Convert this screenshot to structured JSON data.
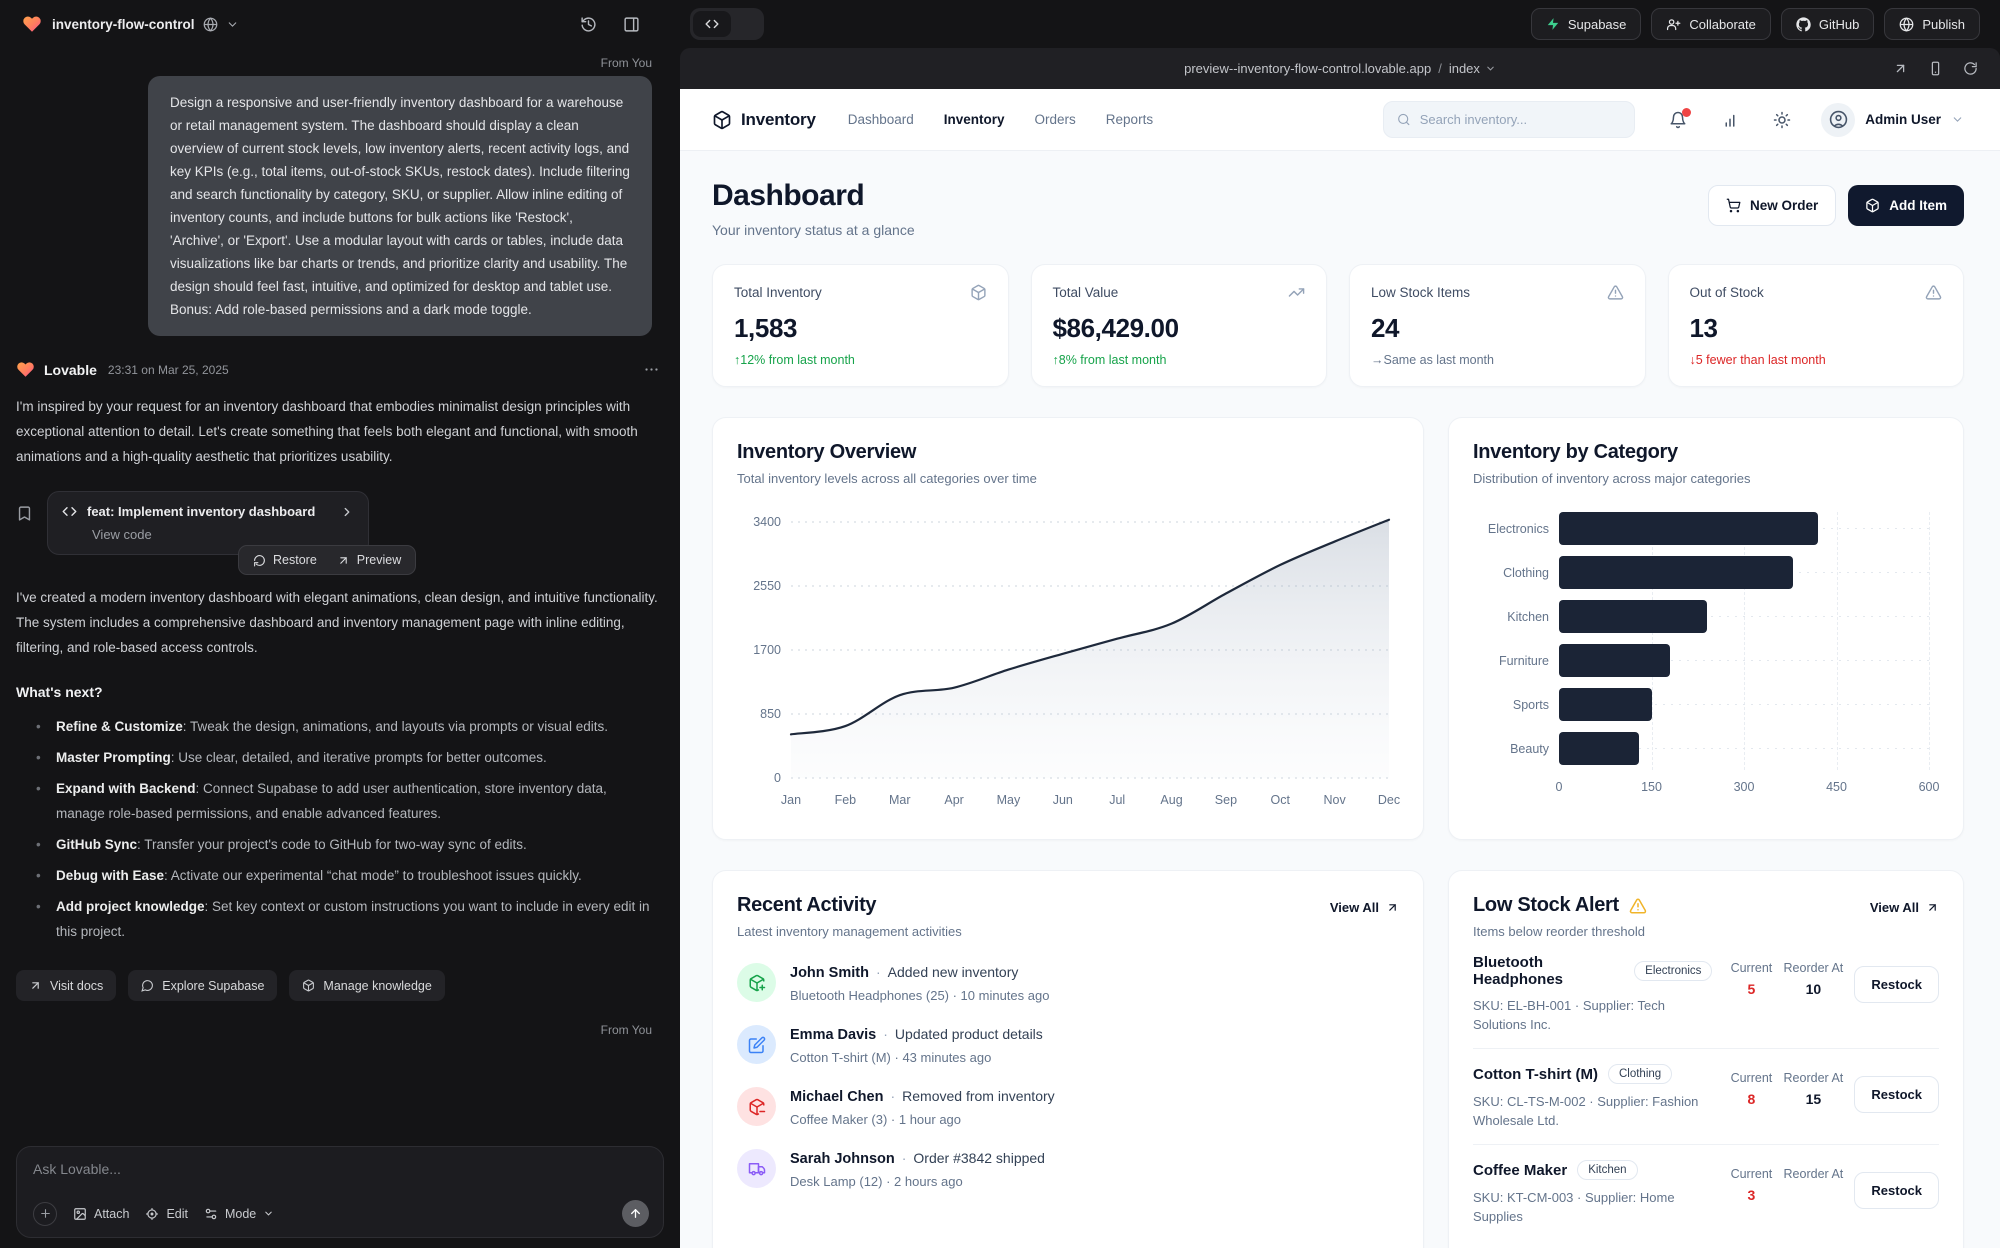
{
  "ui": {
    "dot": "·"
  },
  "chat": {
    "header": {
      "project_name": "inventory-flow-control"
    },
    "from_you_label": "From You",
    "user_message": "Design a responsive and user-friendly inventory dashboard for a warehouse or retail management system. The dashboard should display a clean overview of current stock levels, low inventory alerts, recent activity logs, and key KPIs (e.g., total items, out-of-stock SKUs, restock dates). Include filtering and search functionality by category, SKU, or supplier. Allow inline editing of inventory counts, and include buttons for bulk actions like 'Restock', 'Archive', or 'Export'. Use a modular layout with cards or tables, include data visualizations like bar charts or trends, and prioritize clarity and usability. The design should feel fast, intuitive, and optimized for desktop and tablet use. Bonus: Add role-based permissions and a dark mode toggle.",
    "assistant": {
      "name": "Lovable",
      "timestamp": "23:31 on Mar 25, 2025",
      "intro": "I'm inspired by your request for an inventory dashboard that embodies minimalist design principles with exceptional attention to detail. Let's create something that feels both elegant and functional, with smooth animations and a high-quality aesthetic that prioritizes usability.",
      "commit": {
        "title": "feat: Implement inventory dashboard",
        "view_code_label": "View code",
        "restore_label": "Restore",
        "preview_label": "Preview"
      },
      "summary": "I've created a modern inventory dashboard with elegant animations, clean design, and intuitive functionality. The system includes a comprehensive dashboard and inventory management page with inline editing, filtering, and role-based access controls.",
      "whats_next_heading": "What's next?",
      "bullets": [
        {
          "title": "Refine & Customize",
          "text": ": Tweak the design, animations, and layouts via prompts or visual edits."
        },
        {
          "title": "Master Prompting",
          "text": ": Use clear, detailed, and iterative prompts for better outcomes."
        },
        {
          "title": "Expand with Backend",
          "text": ": Connect Supabase to add user authentication, store inventory data, manage role-based permissions, and enable advanced features."
        },
        {
          "title": "GitHub Sync",
          "text": ": Transfer your project's code to GitHub for two-way sync of edits."
        },
        {
          "title": "Debug with Ease",
          "text": ": Activate our experimental “chat mode” to troubleshoot issues quickly."
        },
        {
          "title": "Add project knowledge",
          "text": ": Set key context or custom instructions you want to include in every edit in this project."
        }
      ]
    },
    "footer_buttons": {
      "visit_docs": "Visit docs",
      "explore_supabase": "Explore Supabase",
      "manage_knowledge": "Manage knowledge"
    },
    "composer": {
      "placeholder": "Ask Lovable...",
      "attach_label": "Attach",
      "edit_label": "Edit",
      "mode_label": "Mode"
    }
  },
  "topbar": {
    "supabase": "Supabase",
    "collaborate": "Collaborate",
    "github": "GitHub",
    "publish": "Publish"
  },
  "browser": {
    "url": "preview--inventory-flow-control.lovable.app",
    "separator": "/",
    "path": "index"
  },
  "app": {
    "nav": {
      "brand": "Inventory",
      "links": [
        "Dashboard",
        "Inventory",
        "Orders",
        "Reports"
      ],
      "active_link": "Inventory",
      "search_placeholder": "Search inventory...",
      "user_name": "Admin User"
    },
    "page": {
      "title": "Dashboard",
      "subtitle": "Your inventory status at a glance",
      "new_order_label": "New Order",
      "add_item_label": "Add Item"
    },
    "kpis": [
      {
        "label": "Total Inventory",
        "value": "1,583",
        "delta": "↑12% from last month",
        "trend": "up",
        "icon": "package-icon"
      },
      {
        "label": "Total Value",
        "value": "$86,429.00",
        "delta": "↑8% from last month",
        "trend": "up",
        "icon": "trending-up-icon"
      },
      {
        "label": "Low Stock Items",
        "value": "24",
        "delta": "→Same as last month",
        "trend": "flat",
        "icon": "alert-triangle-icon"
      },
      {
        "label": "Out of Stock",
        "value": "13",
        "delta": "↓5 fewer than last month",
        "trend": "down",
        "icon": "alert-triangle-icon"
      }
    ],
    "recent_activity": {
      "title": "Recent Activity",
      "subtitle": "Latest inventory management activities",
      "view_all_label": "View All",
      "items": [
        {
          "name": "John Smith",
          "action": "Added new inventory",
          "detail": "Bluetooth Headphones (25) · 10 minutes ago",
          "icon": "package-plus-icon",
          "color": "green"
        },
        {
          "name": "Emma Davis",
          "action": "Updated product details",
          "detail": "Cotton T-shirt (M) · 43 minutes ago",
          "icon": "edit-icon",
          "color": "blue"
        },
        {
          "name": "Michael Chen",
          "action": "Removed from inventory",
          "detail": "Coffee Maker (3) · 1 hour ago",
          "icon": "package-minus-icon",
          "color": "red"
        },
        {
          "name": "Sarah Johnson",
          "action": "Order #3842 shipped",
          "detail": "Desk Lamp (12) · 2 hours ago",
          "icon": "truck-icon",
          "color": "purple"
        }
      ]
    },
    "low_stock": {
      "title": "Low Stock Alert",
      "subtitle": "Items below reorder threshold",
      "view_all_label": "View All",
      "current_label": "Current",
      "reorder_label": "Reorder At",
      "restock_label": "Restock",
      "items": [
        {
          "name": "Bluetooth Headphones",
          "category": "Electronics",
          "sku_line": "SKU: EL-BH-001 · Supplier: Tech Solutions Inc.",
          "current": "5",
          "reorder_at": "10"
        },
        {
          "name": "Cotton T-shirt (M)",
          "category": "Clothing",
          "sku_line": "SKU: CL-TS-M-002 · Supplier: Fashion Wholesale Ltd.",
          "current": "8",
          "reorder_at": "15"
        },
        {
          "name": "Coffee Maker",
          "category": "Kitchen",
          "sku_line": "SKU: KT-CM-003 · Supplier: Home Supplies",
          "current": "3",
          "reorder_at": ""
        }
      ]
    }
  },
  "chart_data": [
    {
      "type": "area",
      "title": "Inventory Overview",
      "subtitle": "Total inventory levels across all categories over time",
      "x": [
        "Jan",
        "Feb",
        "Mar",
        "Apr",
        "May",
        "Jun",
        "Jul",
        "Aug",
        "Sep",
        "Oct",
        "Nov",
        "Dec"
      ],
      "values": [
        580,
        690,
        1100,
        1200,
        1440,
        1650,
        1850,
        2050,
        2450,
        2830,
        3140,
        3430
      ],
      "xlabel": "",
      "ylabel": "",
      "ylim": [
        0,
        3400
      ],
      "yticks": [
        0,
        850,
        1700,
        2550,
        3400
      ],
      "grid": "dotted-horizontal",
      "legend": "none",
      "line_color": "#1e293b"
    },
    {
      "type": "bar",
      "orientation": "horizontal",
      "title": "Inventory by Category",
      "subtitle": "Distribution of inventory across major categories",
      "categories": [
        "Electronics",
        "Clothing",
        "Kitchen",
        "Furniture",
        "Sports",
        "Beauty"
      ],
      "values": [
        420,
        380,
        240,
        180,
        150,
        130
      ],
      "xlim": [
        0,
        600
      ],
      "xticks": [
        0,
        150,
        300,
        450,
        600
      ],
      "grid": "dashed-vertical",
      "legend": "none",
      "bar_color": "#1b2436"
    }
  ]
}
